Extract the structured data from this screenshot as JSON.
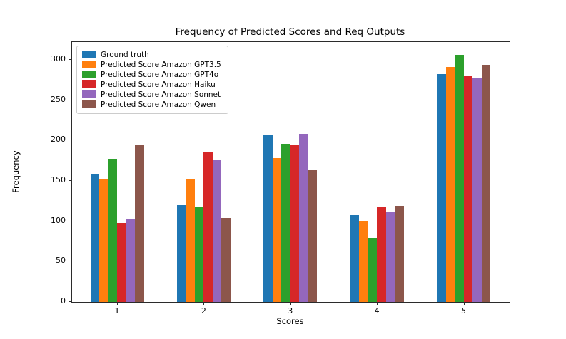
{
  "chart_data": {
    "type": "bar",
    "title": "Frequency of Predicted Scores and Req Outputs",
    "xlabel": "Scores",
    "ylabel": "Frequency",
    "categories": [
      "1",
      "2",
      "3",
      "4",
      "5"
    ],
    "series": [
      {
        "name": "Ground truth",
        "color": "#1f77b4",
        "values": [
          158,
          120,
          207,
          108,
          282
        ]
      },
      {
        "name": "Predicted Score Amazon GPT3.5",
        "color": "#ff7f0e",
        "values": [
          153,
          152,
          178,
          101,
          291
        ]
      },
      {
        "name": "Predicted Score Amazon GPT4o",
        "color": "#2ca02c",
        "values": [
          177,
          117,
          196,
          79,
          306
        ]
      },
      {
        "name": "Predicted Score Amazon Haiku",
        "color": "#d62728",
        "values": [
          98,
          185,
          194,
          118,
          280
        ]
      },
      {
        "name": "Predicted Score Amazon Sonnet",
        "color": "#9467bd",
        "values": [
          103,
          176,
          208,
          111,
          277
        ]
      },
      {
        "name": "Predicted Score Amazon Qwen",
        "color": "#8c564b",
        "values": [
          194,
          104,
          164,
          119,
          294
        ]
      }
    ],
    "ylim": [
      0,
      322
    ],
    "yticks": [
      0,
      50,
      100,
      150,
      200,
      250,
      300
    ],
    "legend_position": "upper left",
    "grid": false,
    "axis_color": "#2b2b2b",
    "background_color": "#ffffff"
  }
}
